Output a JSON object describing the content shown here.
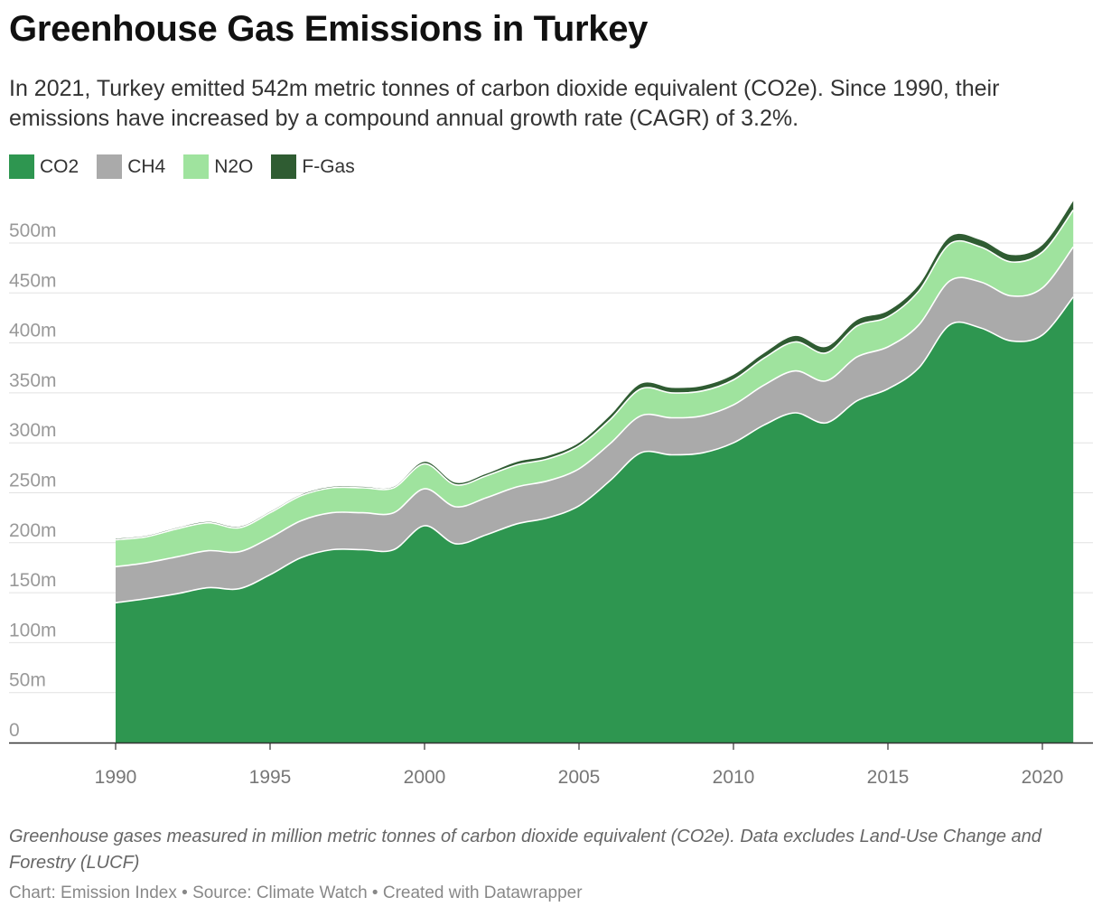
{
  "header": {
    "title": "Greenhouse Gas Emissions in Turkey",
    "subtitle": "In 2021, Turkey emitted 542m metric tonnes of carbon dioxide equivalent (CO2e). Since 1990, their emissions have increased by a compound annual growth rate (CAGR) of 3.2%."
  },
  "footer": {
    "notes": "Greenhouse gases measured in million metric tonnes of carbon dioxide equivalent (CO2e). Data excludes Land-Use Change and Forestry (LUCF)",
    "credit": "Chart: Emission Index • Source: Climate Watch • Created with Datawrapper"
  },
  "chart_data": {
    "type": "area",
    "stacked": true,
    "title": "Greenhouse Gas Emissions in Turkey",
    "xlabel": "",
    "ylabel": "",
    "xlim": [
      1987,
      2022
    ],
    "ylim": [
      0,
      540
    ],
    "grid": true,
    "legend_position": "top-left",
    "x": [
      1990,
      1991,
      1992,
      1993,
      1994,
      1995,
      1996,
      1997,
      1998,
      1999,
      2000,
      2001,
      2002,
      2003,
      2004,
      2005,
      2006,
      2007,
      2008,
      2009,
      2010,
      2011,
      2012,
      2013,
      2014,
      2015,
      2016,
      2017,
      2018,
      2019,
      2020,
      2021
    ],
    "y_ticks": [
      0,
      50,
      100,
      150,
      200,
      250,
      300,
      350,
      400,
      450,
      500
    ],
    "y_tick_labels": [
      "0",
      "50m",
      "100m",
      "150m",
      "200m",
      "250m",
      "300m",
      "350m",
      "400m",
      "450m",
      "500m"
    ],
    "x_ticks": [
      1990,
      1995,
      2000,
      2005,
      2010,
      2015,
      2020
    ],
    "x_tick_labels": [
      "1990",
      "1995",
      "2000",
      "2005",
      "2010",
      "2015",
      "2020"
    ],
    "series": [
      {
        "name": "CO2",
        "color": "#2e9650",
        "values": [
          140,
          144,
          149,
          155,
          154,
          168,
          185,
          193,
          193,
          193,
          217,
          199,
          208,
          219,
          225,
          237,
          262,
          290,
          288,
          290,
          300,
          318,
          330,
          320,
          342,
          354,
          375,
          418,
          415,
          402,
          408,
          446
        ]
      },
      {
        "name": "CH4",
        "color": "#aaaaaa",
        "values": [
          36,
          36,
          37,
          37,
          37,
          37,
          37,
          37,
          37,
          37,
          37,
          37,
          37,
          37,
          37,
          37,
          37,
          37,
          37,
          37,
          38,
          40,
          42,
          42,
          44,
          42,
          43,
          44,
          46,
          45,
          47,
          50
        ]
      },
      {
        "name": "N2O",
        "color": "#9fe39e",
        "values": [
          27,
          26,
          28,
          28,
          24,
          25,
          25,
          25,
          25,
          25,
          25,
          22,
          22,
          22,
          22,
          23,
          24,
          27,
          25,
          25,
          25,
          27,
          29,
          28,
          31,
          30,
          34,
          37,
          35,
          34,
          36,
          37
        ]
      },
      {
        "name": "F-Gas",
        "color": "#2f5c32",
        "values": [
          1,
          1,
          1,
          1,
          1,
          1,
          1,
          1,
          1,
          1,
          2,
          2,
          2,
          3,
          3,
          3,
          4,
          5,
          5,
          5,
          5,
          5,
          6,
          6,
          6,
          6,
          6,
          7,
          7,
          7,
          7,
          9
        ]
      }
    ]
  }
}
